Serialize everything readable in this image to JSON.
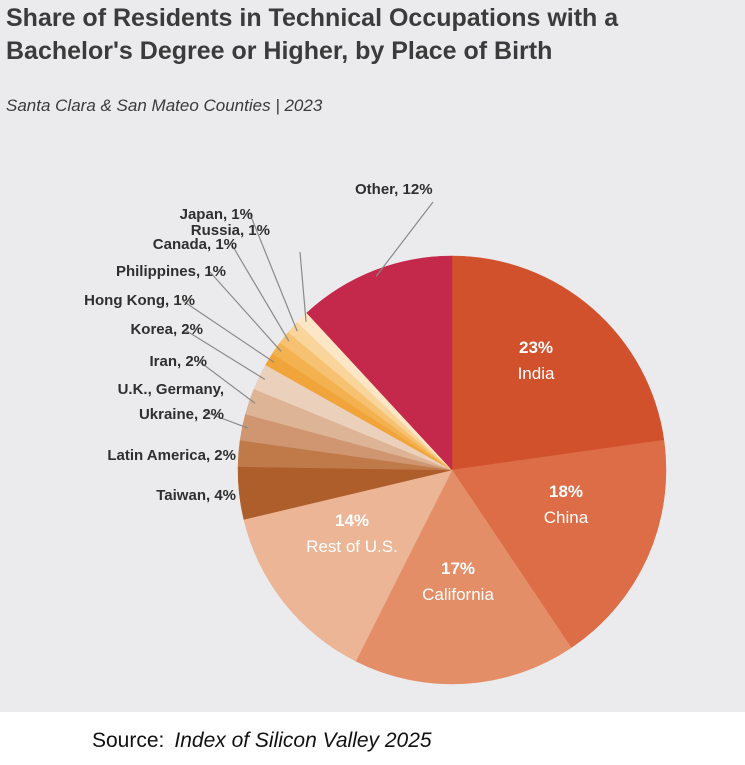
{
  "chart_data": {
    "type": "pie",
    "title": "Share of Residents in Technical Occupations with a Bachelor's Degree or Higher, by Place of Birth",
    "subtitle": "Santa Clara & San Mateo Counties | 2023",
    "unit": "%",
    "slices": [
      {
        "category": "India",
        "value": 23,
        "value_label": "23%",
        "color": "#d2512d"
      },
      {
        "category": "China",
        "value": 18,
        "value_label": "18%",
        "color": "#dc6d46"
      },
      {
        "category": "California",
        "value": 17,
        "value_label": "17%",
        "color": "#e48e67"
      },
      {
        "category": "Rest of U.S.",
        "value": 14,
        "value_label": "14%",
        "color": "#ecb596"
      },
      {
        "category": "Taiwan",
        "value": 4,
        "label": "Taiwan, 4%",
        "color": "#ad5e2b"
      },
      {
        "category": "Latin America",
        "value": 2,
        "label": "Latin America, 2%",
        "color": "#c07a4a"
      },
      {
        "category": "U.K., Germany, Ukraine",
        "value": 2,
        "label_lines": [
          "U.K., Germany,",
          "Ukraine, 2%"
        ],
        "color": "#cf9671"
      },
      {
        "category": "Iran",
        "value": 2,
        "label": "Iran, 2%",
        "color": "#ddb495"
      },
      {
        "category": "Korea",
        "value": 2,
        "label": "Korea, 2%",
        "color": "#ebd1bb"
      },
      {
        "category": "Hong Kong",
        "value": 1,
        "label": "Hong Kong, 1%",
        "color": "#f0a43a"
      },
      {
        "category": "Philippines",
        "value": 1,
        "label": "Philippines, 1%",
        "color": "#f3b24f"
      },
      {
        "category": "Canada",
        "value": 1,
        "label": "Canada, 1%",
        "color": "#f6c171"
      },
      {
        "category": "Japan",
        "value": 1,
        "label": "Japan, 1%",
        "color": "#f9d59b"
      },
      {
        "category": "Russia",
        "value": 1,
        "label": "Russia, 1%",
        "color": "#fce6c6"
      },
      {
        "category": "Other",
        "value": 12,
        "label": "Other, 12%",
        "color": "#c4284b"
      }
    ]
  },
  "source": {
    "prefix": "Source:",
    "publication": "Index of Silicon Valley 2025"
  }
}
